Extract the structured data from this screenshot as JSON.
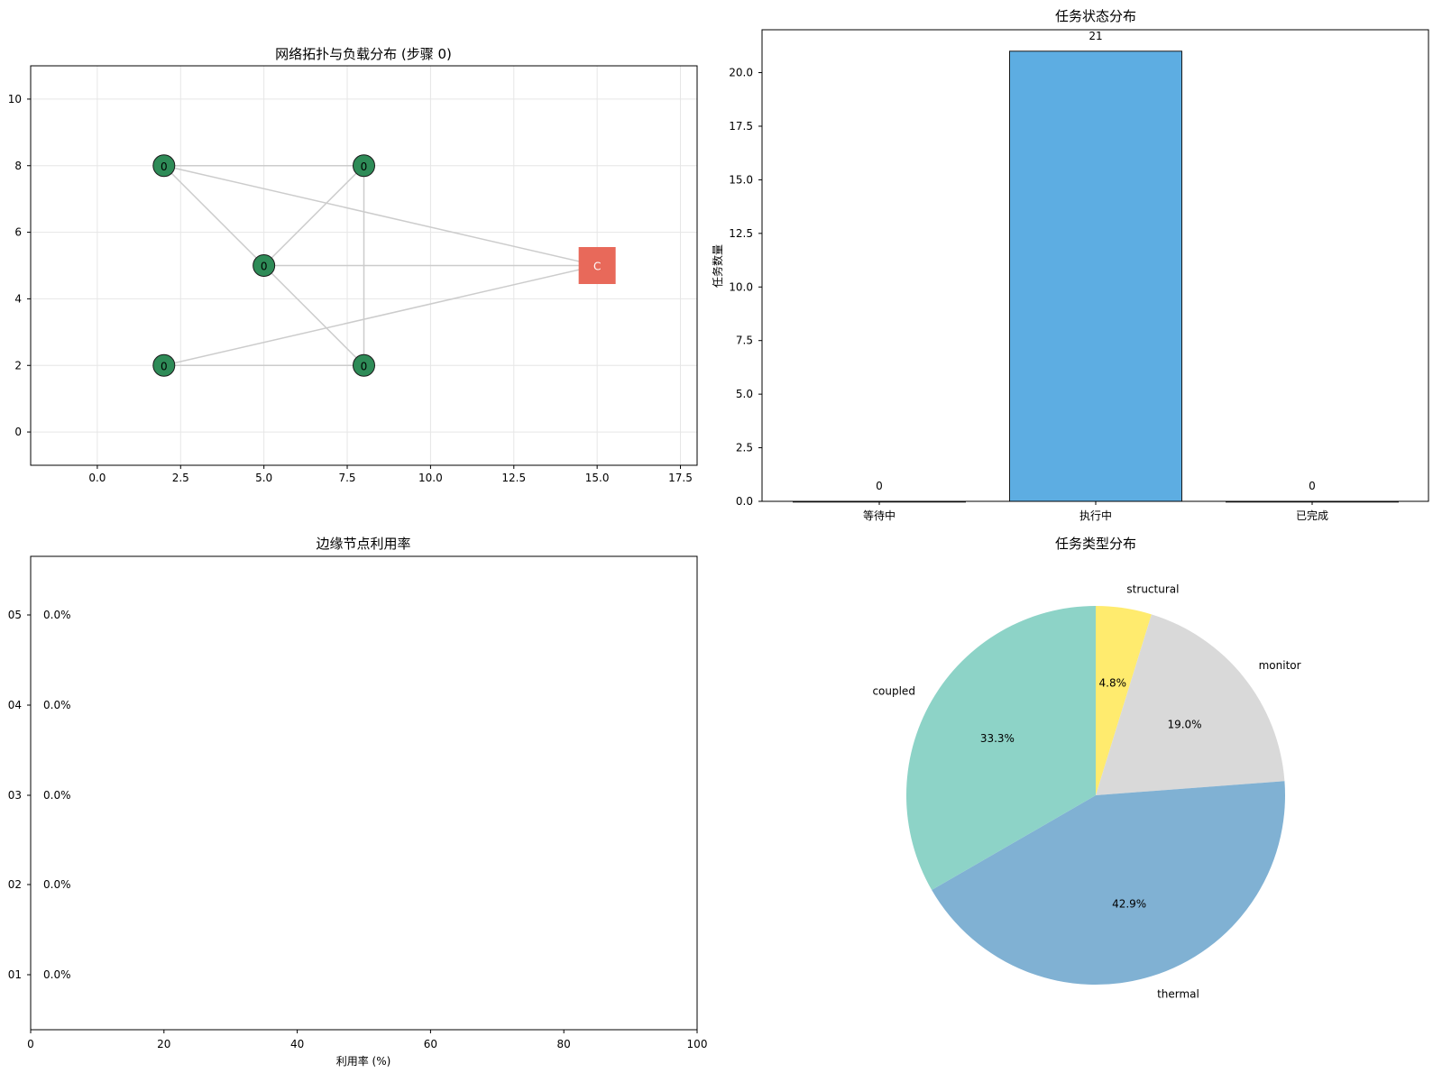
{
  "chart_data": [
    {
      "type": "scatter",
      "title": "网络拓扑与负载分布 (步骤 0)",
      "xlim": [
        -2,
        18
      ],
      "ylim": [
        -1,
        11
      ],
      "x_ticks": [
        0.0,
        2.5,
        5.0,
        7.5,
        10.0,
        12.5,
        15.0,
        17.5
      ],
      "x_tick_labels": [
        "0.0",
        "2.5",
        "5.0",
        "7.5",
        "10.0",
        "12.5",
        "15.0",
        "17.5"
      ],
      "y_ticks": [
        0,
        2,
        4,
        6,
        8,
        10
      ],
      "y_tick_labels": [
        "0",
        "2",
        "4",
        "6",
        "8",
        "10"
      ],
      "grid": true,
      "nodes": [
        {
          "id": "e1",
          "x": 2,
          "y": 8,
          "label": "0",
          "kind": "edge",
          "color": "#2e8b57"
        },
        {
          "id": "e2",
          "x": 8,
          "y": 8,
          "label": "0",
          "kind": "edge",
          "color": "#2e8b57"
        },
        {
          "id": "e3",
          "x": 5,
          "y": 5,
          "label": "0",
          "kind": "edge",
          "color": "#2e8b57"
        },
        {
          "id": "e4",
          "x": 2,
          "y": 2,
          "label": "0",
          "kind": "edge",
          "color": "#2e8b57"
        },
        {
          "id": "e5",
          "x": 8,
          "y": 2,
          "label": "0",
          "kind": "edge",
          "color": "#2e8b57"
        },
        {
          "id": "cloud",
          "x": 15,
          "y": 5,
          "label": "C",
          "kind": "cloud",
          "color": "#e8695a"
        }
      ],
      "links": [
        [
          "e1",
          "e2"
        ],
        [
          "e1",
          "e3"
        ],
        [
          "e1",
          "cloud"
        ],
        [
          "e2",
          "e3"
        ],
        [
          "e2",
          "e5"
        ],
        [
          "e3",
          "cloud"
        ],
        [
          "e3",
          "e5"
        ],
        [
          "e4",
          "e5"
        ],
        [
          "e4",
          "cloud"
        ]
      ],
      "link_color": "#cccccc"
    },
    {
      "type": "bar",
      "title": "任务状态分布",
      "ylabel": "任务数量",
      "categories": [
        "等待中",
        "执行中",
        "已完成"
      ],
      "values": [
        0,
        21,
        0
      ],
      "value_labels": [
        "0",
        "21",
        "0"
      ],
      "ylim": [
        0,
        22
      ],
      "y_ticks": [
        0,
        2.5,
        5.0,
        7.5,
        10.0,
        12.5,
        15.0,
        17.5,
        20.0
      ],
      "y_tick_labels": [
        "0.0",
        "2.5",
        "5.0",
        "7.5",
        "10.0",
        "12.5",
        "15.0",
        "17.5",
        "20.0"
      ],
      "bar_color": "#5dade2",
      "grid": false
    },
    {
      "type": "bar",
      "orientation": "horizontal",
      "title": "边缘节点利用率",
      "xlabel": "利用率 (%)",
      "categories": [
        "01",
        "02",
        "03",
        "04",
        "05"
      ],
      "values": [
        0.0,
        0.0,
        0.0,
        0.0,
        0.0
      ],
      "value_labels": [
        "0.0%",
        "0.0%",
        "0.0%",
        "0.0%",
        "0.0%"
      ],
      "xlim": [
        0,
        100
      ],
      "x_ticks": [
        0,
        20,
        40,
        60,
        80,
        100
      ],
      "x_tick_labels": [
        "0",
        "20",
        "40",
        "60",
        "80",
        "100"
      ],
      "grid": false
    },
    {
      "type": "pie",
      "title": "任务类型分布",
      "slices": [
        {
          "label": "structural",
          "value": 1,
          "pct_label": "4.8%",
          "color": "#ffeb6e"
        },
        {
          "label": "monitor",
          "value": 4,
          "pct_label": "19.0%",
          "color": "#d9d9d9"
        },
        {
          "label": "thermal",
          "value": 9,
          "pct_label": "42.9%",
          "color": "#80b1d3"
        },
        {
          "label": "coupled",
          "value": 7,
          "pct_label": "33.3%",
          "color": "#8dd3c7"
        }
      ],
      "start_angle_deg": 90,
      "direction": "clockwise"
    }
  ]
}
